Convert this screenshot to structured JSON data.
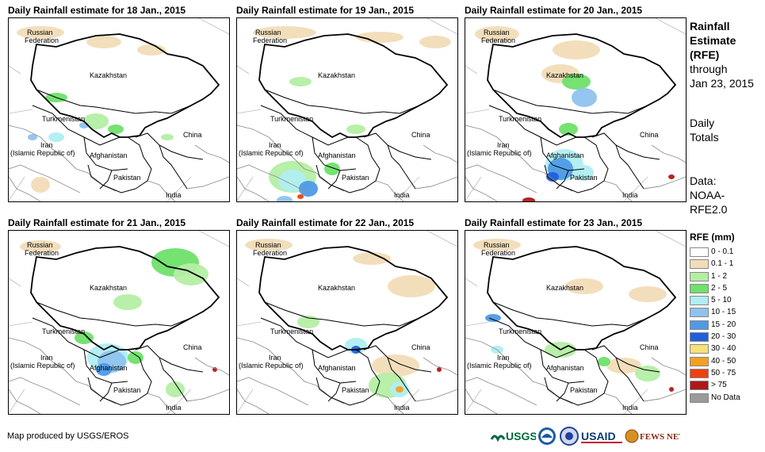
{
  "panels": [
    {
      "title": "Daily Rainfall estimate for 18 Jan., 2015"
    },
    {
      "title": "Daily Rainfall estimate for 19 Jan., 2015"
    },
    {
      "title": "Daily Rainfall estimate for 20 Jan., 2015"
    },
    {
      "title": "Daily Rainfall estimate for 21 Jan., 2015"
    },
    {
      "title": "Daily Rainfall estimate for 22 Jan., 2015"
    },
    {
      "title": "Daily Rainfall estimate for 23 Jan., 2015"
    }
  ],
  "map_labels": {
    "russia_1": "Russian",
    "russia_2": "Federation",
    "kazakhstan": "Kazakhstan",
    "turkmenistan": "Turkmenistan",
    "china": "China",
    "iran_1": "Iran",
    "iran_2": "(Islamic Republic of)",
    "afghanistan": "Afghanistan",
    "pakistan": "Pakistan",
    "india": "India"
  },
  "side_info": {
    "title_1": "Rainfall",
    "title_2": "Estimate",
    "title_3": "(RFE)",
    "through_1": "through",
    "through_2": "Jan 23, 2015",
    "totals_1": "Daily",
    "totals_2": "Totals",
    "data_1": "Data:",
    "data_2": "NOAA-",
    "data_3": "RFE2.0"
  },
  "legend": {
    "title": "RFE (mm)",
    "items": [
      {
        "label": "0 - 0.1",
        "color": "#ffffff"
      },
      {
        "label": "0.1 - 1",
        "color": "#f2dcb8"
      },
      {
        "label": "1 - 2",
        "color": "#b4eea4"
      },
      {
        "label": "2 - 5",
        "color": "#6fe06a"
      },
      {
        "label": "5 - 10",
        "color": "#b0eef2"
      },
      {
        "label": "10 - 15",
        "color": "#8ec3ee"
      },
      {
        "label": "15 - 20",
        "color": "#4e9ae6"
      },
      {
        "label": "20 - 30",
        "color": "#2060dc"
      },
      {
        "label": "30 - 40",
        "color": "#f8e078"
      },
      {
        "label": "40 - 50",
        "color": "#f4a020"
      },
      {
        "label": "50 - 75",
        "color": "#f04010"
      },
      {
        "label": "> 75",
        "color": "#b01818"
      },
      {
        "label": "No Data",
        "color": "#9a9a9a"
      }
    ]
  },
  "credit": "Map produced by USGS/EROS",
  "logos": {
    "usgs": "USGS",
    "usaid": "USAID",
    "fews": "FEWS NET"
  }
}
